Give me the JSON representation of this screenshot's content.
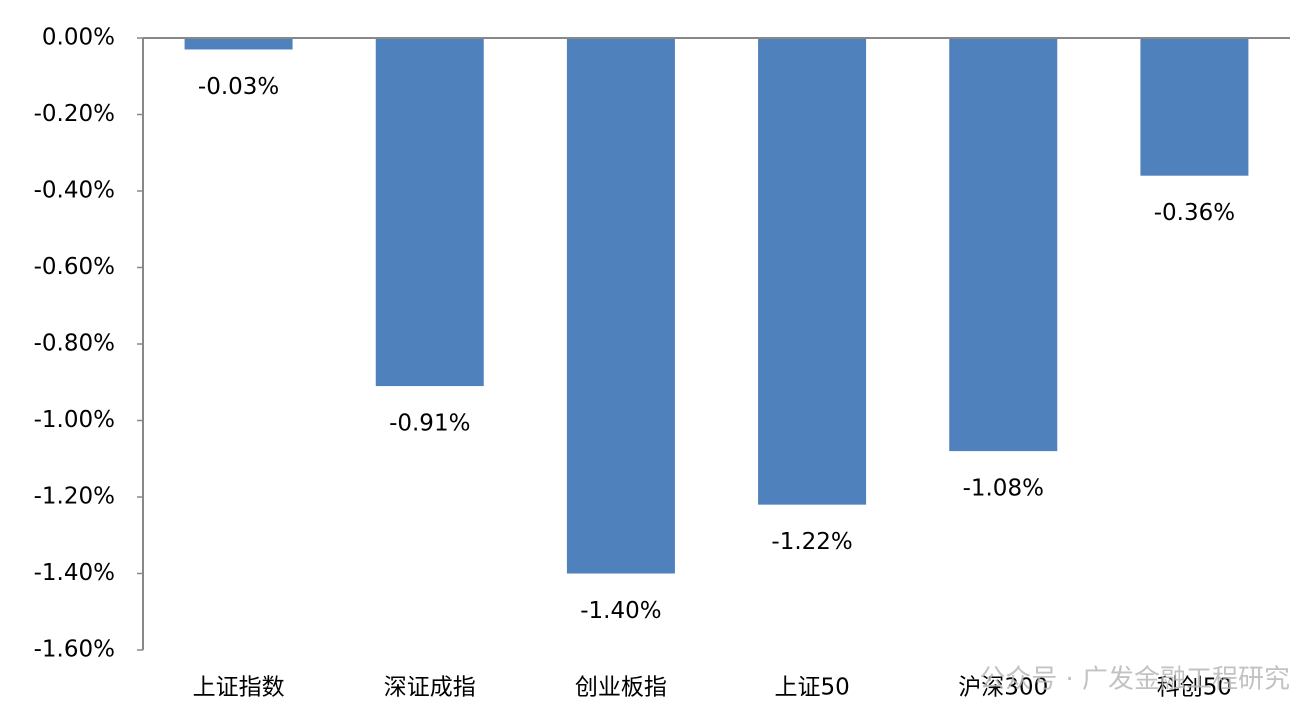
{
  "chart_data": {
    "type": "bar",
    "categories": [
      "上证指数",
      "深证成指",
      "创业板指",
      "上证50",
      "沪深300",
      "科创50"
    ],
    "values": [
      -0.03,
      -0.91,
      -1.4,
      -1.22,
      -1.08,
      -0.36
    ],
    "value_labels": [
      "-0.03%",
      "-0.91%",
      "-1.40%",
      "-1.22%",
      "-1.08%",
      "-0.36%"
    ],
    "color": "#4f81bd",
    "ylim": [
      -1.6,
      0
    ],
    "yticks": [
      {
        "value": 0,
        "label": "0.00%"
      },
      {
        "value": -0.2,
        "label": "-0.20%"
      },
      {
        "value": -0.4,
        "label": "-0.40%"
      },
      {
        "value": -0.6,
        "label": "-0.60%"
      },
      {
        "value": -0.8,
        "label": "-0.80%"
      },
      {
        "value": -1.0,
        "label": "-1.00%"
      },
      {
        "value": -1.2,
        "label": "-1.20%"
      },
      {
        "value": -1.4,
        "label": "-1.40%"
      },
      {
        "value": -1.6,
        "label": "-1.60%"
      }
    ],
    "grid": false,
    "watermark": "公众号 · 广发金融工程研究"
  }
}
